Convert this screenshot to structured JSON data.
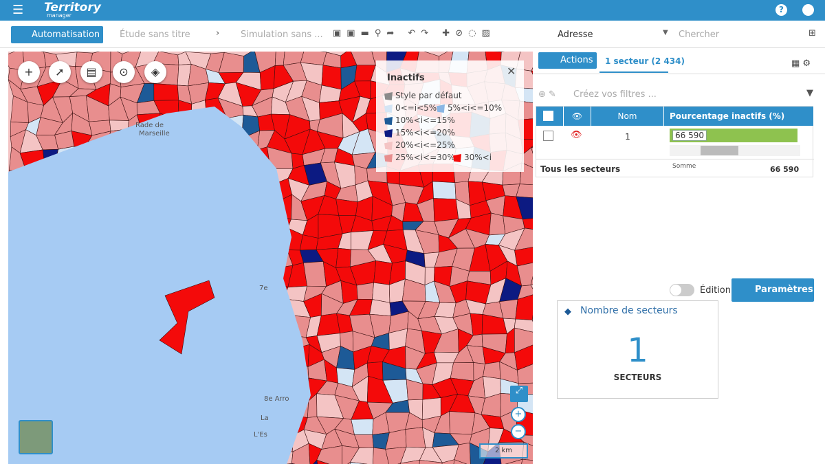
{
  "header": {
    "logo_title": "Territory",
    "logo_subtitle": "manager"
  },
  "toolbar": {
    "automation": "Automatisation",
    "study": "Étude sans titre",
    "simulation": "Simulation sans ...",
    "address": "Adresse",
    "search": "Chercher"
  },
  "legend": {
    "title": "Inactifs",
    "items": [
      {
        "label": "Style par défaut",
        "color": "#8a8a8a"
      },
      {
        "label": "0<=i<5%",
        "color": "#d4e5f5"
      },
      {
        "label": "5%<i<=10%",
        "color": "#8ab6e4"
      },
      {
        "label": "10%<i<=15%",
        "color": "#1d5a97"
      },
      {
        "label": "15%<i<=20%",
        "color": "#0c1a82"
      },
      {
        "label": "20%<i<=25%",
        "color": "#f4c4c4"
      },
      {
        "label": "25%<i<=30%",
        "color": "#e88e8e"
      },
      {
        "label": "30%<i",
        "color": "#f40a0a"
      }
    ]
  },
  "map": {
    "labels": [
      "Rade de",
      "Marseille",
      "7e",
      "8e Arro",
      "La",
      "L'Es"
    ],
    "scale": "2 km"
  },
  "panel": {
    "actions": "Actions",
    "tab": "1 secteur (2 434)",
    "filter_placeholder": "Créez vos filtres ...",
    "table": {
      "columns": [
        "Nom",
        "Pourcentage inactifs (%)"
      ],
      "rows": [
        [
          "1",
          "66 590"
        ]
      ],
      "footer": {
        "label": "Tous les secteurs",
        "aggregate": "Somme",
        "value": "66 590"
      }
    }
  },
  "settings": {
    "edition": "Édition",
    "parameters": "Paramètres"
  },
  "widget": {
    "title": "Nombre de secteurs",
    "value": "1",
    "unit": "SECTEURS"
  }
}
